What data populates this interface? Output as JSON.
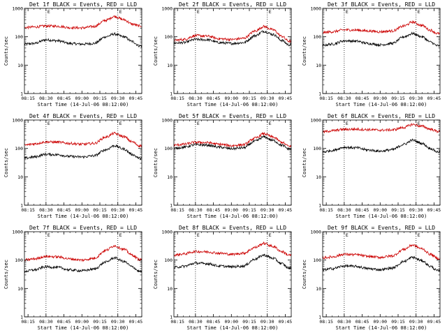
{
  "figure": {
    "background": "#ffffff",
    "axis_color": "#000000",
    "events_color": "#000000",
    "lld_color": "#cc0000",
    "event_marker_color": "#000000"
  },
  "chart_data": [
    {
      "type": "line",
      "title": "Det 1f BLACK = Events, RED = LLD",
      "xlabel": "Start Time (14-Jul-06 08:12:00)",
      "ylabel": "Counts/sec",
      "x_ticks": [
        "08:15",
        "08:30",
        "08:45",
        "09:00",
        "09:15",
        "09:30",
        "09:45"
      ],
      "x_range": [
        "08:12",
        "09:50"
      ],
      "y_scale": "log",
      "ylim": [
        1,
        1000
      ],
      "y_ticks": [
        "1",
        "10",
        "100",
        "1000"
      ],
      "marker_lines": [
        "08:30",
        "09:30"
      ],
      "marker_labels": [
        "E",
        "E"
      ],
      "grid": false,
      "series": [
        {
          "legend_label": "BLACK = Events",
          "color": "#000000",
          "x": [
            "08:12",
            "08:20",
            "08:30",
            "08:40",
            "08:50",
            "09:00",
            "09:10",
            "09:20",
            "09:27",
            "09:35",
            "09:42",
            "09:48"
          ],
          "values": [
            55,
            58,
            78,
            72,
            58,
            55,
            58,
            100,
            125,
            100,
            68,
            48
          ]
        },
        {
          "legend_label": "RED = LLD",
          "color": "#cc0000",
          "x": [
            "08:12",
            "08:20",
            "08:30",
            "08:40",
            "08:50",
            "09:00",
            "09:10",
            "09:20",
            "09:27",
            "09:35",
            "09:42",
            "09:48"
          ],
          "values": [
            210,
            220,
            240,
            235,
            210,
            205,
            230,
            380,
            520,
            400,
            280,
            240
          ]
        }
      ]
    },
    {
      "type": "line",
      "title": "Det 2f BLACK = Events, RED = LLD",
      "xlabel": "Start Time (14-Jul-06 08:12:00)",
      "ylabel": "Counts/sec",
      "x_ticks": [
        "08:15",
        "08:30",
        "08:45",
        "09:00",
        "09:15",
        "09:30",
        "09:45"
      ],
      "x_range": [
        "08:12",
        "09:50"
      ],
      "y_scale": "log",
      "ylim": [
        1,
        1000
      ],
      "y_ticks": [
        "1",
        "10",
        "100",
        "1000"
      ],
      "marker_lines": [
        "08:30",
        "09:30"
      ],
      "marker_labels": [
        "E",
        "E"
      ],
      "grid": false,
      "series": [
        {
          "legend_label": "BLACK = Events",
          "color": "#000000",
          "x": [
            "08:12",
            "08:20",
            "08:30",
            "08:40",
            "08:50",
            "09:00",
            "09:10",
            "09:20",
            "09:27",
            "09:35",
            "09:42",
            "09:48"
          ],
          "values": [
            60,
            62,
            80,
            78,
            62,
            58,
            62,
            110,
            155,
            120,
            75,
            52
          ]
        },
        {
          "legend_label": "RED = LLD",
          "color": "#cc0000",
          "x": [
            "08:12",
            "08:20",
            "08:30",
            "08:40",
            "08:50",
            "09:00",
            "09:10",
            "09:20",
            "09:27",
            "09:35",
            "09:42",
            "09:48"
          ],
          "values": [
            75,
            80,
            110,
            105,
            85,
            80,
            88,
            160,
            230,
            175,
            105,
            70
          ]
        }
      ]
    },
    {
      "type": "line",
      "title": "Det 3f BLACK = Events, RED = LLD",
      "xlabel": "Start Time (14-Jul-06 08:12:00)",
      "ylabel": "Counts/sec",
      "x_ticks": [
        "08:15",
        "08:30",
        "08:45",
        "09:00",
        "09:15",
        "09:30",
        "09:45"
      ],
      "x_range": [
        "08:12",
        "09:50"
      ],
      "y_scale": "log",
      "ylim": [
        1,
        1000
      ],
      "y_ticks": [
        "1",
        "10",
        "100",
        "1000"
      ],
      "marker_lines": [
        "08:30",
        "09:30"
      ],
      "marker_labels": [
        "E",
        "E"
      ],
      "grid": false,
      "series": [
        {
          "legend_label": "BLACK = Events",
          "color": "#000000",
          "x": [
            "08:12",
            "08:20",
            "08:30",
            "08:40",
            "08:50",
            "09:00",
            "09:10",
            "09:20",
            "09:27",
            "09:35",
            "09:42",
            "09:48"
          ],
          "values": [
            50,
            55,
            72,
            70,
            58,
            52,
            58,
            100,
            130,
            100,
            65,
            48
          ]
        },
        {
          "legend_label": "RED = LLD",
          "color": "#cc0000",
          "x": [
            "08:12",
            "08:20",
            "08:30",
            "08:40",
            "08:50",
            "09:00",
            "09:10",
            "09:20",
            "09:27",
            "09:35",
            "09:42",
            "09:48"
          ],
          "values": [
            140,
            150,
            175,
            172,
            160,
            150,
            160,
            240,
            330,
            250,
            170,
            130
          ]
        }
      ]
    },
    {
      "type": "line",
      "title": "Det 4f BLACK = Events, RED = LLD",
      "xlabel": "Start Time (14-Jul-06 08:12:00)",
      "ylabel": "Counts/sec",
      "x_ticks": [
        "08:15",
        "08:30",
        "08:45",
        "09:00",
        "09:15",
        "09:30",
        "09:45"
      ],
      "x_range": [
        "08:12",
        "09:50"
      ],
      "y_scale": "log",
      "ylim": [
        1,
        1000
      ],
      "y_ticks": [
        "1",
        "10",
        "100",
        "1000"
      ],
      "marker_lines": [
        "08:30",
        "09:30"
      ],
      "marker_labels": [
        "E",
        "E"
      ],
      "grid": false,
      "series": [
        {
          "legend_label": "BLACK = Events",
          "color": "#000000",
          "x": [
            "08:12",
            "08:20",
            "08:30",
            "08:40",
            "08:50",
            "09:00",
            "09:10",
            "09:20",
            "09:27",
            "09:35",
            "09:42",
            "09:48"
          ],
          "values": [
            45,
            50,
            62,
            60,
            52,
            50,
            55,
            90,
            125,
            95,
            62,
            45
          ]
        },
        {
          "legend_label": "RED = LLD",
          "color": "#cc0000",
          "x": [
            "08:12",
            "08:20",
            "08:30",
            "08:40",
            "08:50",
            "09:00",
            "09:10",
            "09:20",
            "09:27",
            "09:35",
            "09:42",
            "09:48"
          ],
          "values": [
            130,
            145,
            170,
            165,
            150,
            140,
            150,
            250,
            340,
            260,
            170,
            125
          ]
        }
      ]
    },
    {
      "type": "line",
      "title": "Det 5f BLACK = Events, RED = LLD",
      "xlabel": "Start Time (14-Jul-06 08:12:00)",
      "ylabel": "Counts/sec",
      "x_ticks": [
        "08:15",
        "08:30",
        "08:45",
        "09:00",
        "09:15",
        "09:30",
        "09:45"
      ],
      "x_range": [
        "08:12",
        "09:50"
      ],
      "y_scale": "log",
      "ylim": [
        1,
        1000
      ],
      "y_ticks": [
        "1",
        "10",
        "100",
        "1000"
      ],
      "marker_lines": [
        "08:30",
        "09:30"
      ],
      "marker_labels": [
        "E",
        "E"
      ],
      "grid": false,
      "series": [
        {
          "legend_label": "BLACK = Events",
          "color": "#000000",
          "x": [
            "08:12",
            "08:20",
            "08:30",
            "08:40",
            "08:50",
            "09:00",
            "09:10",
            "09:20",
            "09:27",
            "09:35",
            "09:42",
            "09:48"
          ],
          "values": [
            100,
            110,
            135,
            130,
            110,
            98,
            105,
            180,
            255,
            190,
            130,
            95
          ]
        },
        {
          "legend_label": "RED = LLD",
          "color": "#cc0000",
          "x": [
            "08:12",
            "08:20",
            "08:30",
            "08:40",
            "08:50",
            "09:00",
            "09:10",
            "09:20",
            "09:27",
            "09:35",
            "09:42",
            "09:48"
          ],
          "values": [
            130,
            140,
            165,
            160,
            140,
            125,
            135,
            230,
            330,
            250,
            165,
            120
          ]
        }
      ]
    },
    {
      "type": "line",
      "title": "Det 6f BLACK = Events, RED = LLD",
      "xlabel": "Start Time (14-Jul-06 08:12:00)",
      "ylabel": "Counts/sec",
      "x_ticks": [
        "08:15",
        "08:30",
        "08:45",
        "09:00",
        "09:15",
        "09:30",
        "09:45"
      ],
      "x_range": [
        "08:12",
        "09:50"
      ],
      "y_scale": "log",
      "ylim": [
        1,
        1000
      ],
      "y_ticks": [
        "1",
        "10",
        "100",
        "1000"
      ],
      "marker_lines": [
        "08:30",
        "09:30"
      ],
      "marker_labels": [
        "E",
        "E"
      ],
      "grid": false,
      "series": [
        {
          "legend_label": "BLACK = Events",
          "color": "#000000",
          "x": [
            "08:12",
            "08:20",
            "08:30",
            "08:40",
            "08:50",
            "09:00",
            "09:10",
            "09:20",
            "09:27",
            "09:35",
            "09:42",
            "09:48"
          ],
          "values": [
            75,
            85,
            110,
            105,
            88,
            80,
            90,
            140,
            195,
            150,
            100,
            75
          ]
        },
        {
          "legend_label": "RED = LLD",
          "color": "#cc0000",
          "x": [
            "08:12",
            "08:20",
            "08:30",
            "08:40",
            "08:50",
            "09:00",
            "09:10",
            "09:20",
            "09:27",
            "09:35",
            "09:42",
            "09:48"
          ],
          "values": [
            380,
            420,
            470,
            475,
            460,
            440,
            450,
            550,
            700,
            600,
            480,
            400
          ]
        }
      ]
    },
    {
      "type": "line",
      "title": "Det 7f BLACK = Events, RED = LLD",
      "xlabel": "Start Time (14-Jul-06 08:12:00)",
      "ylabel": "Counts/sec",
      "x_ticks": [
        "08:15",
        "08:30",
        "08:45",
        "09:00",
        "09:15",
        "09:30",
        "09:45"
      ],
      "x_range": [
        "08:12",
        "09:50"
      ],
      "y_scale": "log",
      "ylim": [
        1,
        1000
      ],
      "y_ticks": [
        "1",
        "10",
        "100",
        "1000"
      ],
      "marker_lines": [
        "08:30",
        "09:30"
      ],
      "marker_labels": [
        "E",
        "E"
      ],
      "grid": false,
      "series": [
        {
          "legend_label": "BLACK = Events",
          "color": "#000000",
          "x": [
            "08:12",
            "08:20",
            "08:30",
            "08:40",
            "08:50",
            "09:00",
            "09:10",
            "09:20",
            "09:27",
            "09:35",
            "09:42",
            "09:48"
          ],
          "values": [
            40,
            45,
            58,
            55,
            45,
            42,
            48,
            85,
            120,
            90,
            58,
            40
          ]
        },
        {
          "legend_label": "RED = LLD",
          "color": "#cc0000",
          "x": [
            "08:12",
            "08:20",
            "08:30",
            "08:40",
            "08:50",
            "09:00",
            "09:10",
            "09:20",
            "09:27",
            "09:35",
            "09:42",
            "09:48"
          ],
          "values": [
            100,
            110,
            135,
            130,
            110,
            100,
            115,
            220,
            320,
            240,
            150,
            105
          ]
        }
      ]
    },
    {
      "type": "line",
      "title": "Det 8f BLACK = Events, RED = LLD",
      "xlabel": "Start Time (14-Jul-06 08:12:00)",
      "ylabel": "Counts/sec",
      "x_ticks": [
        "08:15",
        "08:30",
        "08:45",
        "09:00",
        "09:15",
        "09:30",
        "09:45"
      ],
      "x_range": [
        "08:12",
        "09:50"
      ],
      "y_scale": "log",
      "ylim": [
        1,
        1000
      ],
      "y_ticks": [
        "1",
        "10",
        "100",
        "1000"
      ],
      "marker_lines": [
        "08:30",
        "09:30"
      ],
      "marker_labels": [
        "E",
        "E"
      ],
      "grid": false,
      "series": [
        {
          "legend_label": "BLACK = Events",
          "color": "#000000",
          "x": [
            "08:12",
            "08:20",
            "08:30",
            "08:40",
            "08:50",
            "09:00",
            "09:10",
            "09:20",
            "09:27",
            "09:35",
            "09:42",
            "09:48"
          ],
          "values": [
            55,
            60,
            78,
            75,
            62,
            58,
            62,
            110,
            150,
            115,
            75,
            52
          ]
        },
        {
          "legend_label": "RED = LLD",
          "color": "#cc0000",
          "x": [
            "08:12",
            "08:20",
            "08:30",
            "08:40",
            "08:50",
            "09:00",
            "09:10",
            "09:20",
            "09:27",
            "09:35",
            "09:42",
            "09:48"
          ],
          "values": [
            150,
            165,
            200,
            195,
            175,
            160,
            175,
            280,
            390,
            300,
            200,
            150
          ]
        }
      ]
    },
    {
      "type": "line",
      "title": "Det 9f BLACK = Events, RED = LLD",
      "xlabel": "Start Time (14-Jul-06 08:12:00)",
      "ylabel": "Counts/sec",
      "x_ticks": [
        "08:15",
        "08:30",
        "08:45",
        "09:00",
        "09:15",
        "09:30",
        "09:45"
      ],
      "x_range": [
        "08:12",
        "09:50"
      ],
      "y_scale": "log",
      "ylim": [
        1,
        1000
      ],
      "y_ticks": [
        "1",
        "10",
        "100",
        "1000"
      ],
      "marker_lines": [
        "08:30",
        "09:30"
      ],
      "marker_labels": [
        "E",
        "E"
      ],
      "grid": false,
      "series": [
        {
          "legend_label": "BLACK = Events",
          "color": "#000000",
          "x": [
            "08:12",
            "08:20",
            "08:30",
            "08:40",
            "08:50",
            "09:00",
            "09:10",
            "09:20",
            "09:27",
            "09:35",
            "09:42",
            "09:48"
          ],
          "values": [
            45,
            50,
            62,
            60,
            50,
            46,
            52,
            90,
            125,
            95,
            60,
            42
          ]
        },
        {
          "legend_label": "RED = LLD",
          "color": "#cc0000",
          "x": [
            "08:12",
            "08:20",
            "08:30",
            "08:40",
            "08:50",
            "09:00",
            "09:10",
            "09:20",
            "09:27",
            "09:35",
            "09:42",
            "09:48"
          ],
          "values": [
            120,
            130,
            160,
            155,
            135,
            125,
            140,
            240,
            340,
            250,
            160,
            115
          ]
        }
      ]
    }
  ]
}
